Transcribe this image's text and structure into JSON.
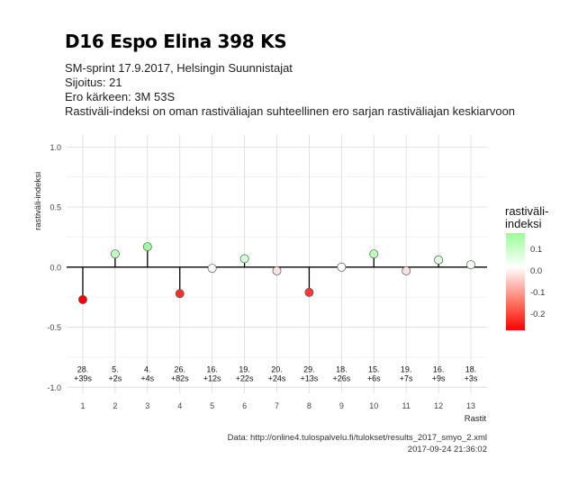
{
  "title": "D16 Espo Elina 398 KS",
  "subtitle_lines": [
    "SM-sprint 17.9.2017, Helsingin Suunnistajat",
    "Sijoitus: 21",
    "Ero kärkeen: 3M 53S",
    "Rastiväli-indeksi on oman rastiväliajan suhteellinen ero sarjan rastiväliajan keskiarvoon"
  ],
  "caption": {
    "source": "Data: http://online4.tulospalvelu.fi/tulokset/results_2017_smyo_2.xml",
    "timestamp": "2017-09-24 21:36:02"
  },
  "legend": {
    "title_line1": "rastiväli-",
    "title_line2": "indeksi",
    "ticks": [
      "0.1",
      "0.0",
      "-0.1",
      "-0.2"
    ],
    "tick_values": [
      0.1,
      0.0,
      -0.1,
      -0.2
    ],
    "range": [
      -0.27,
      0.18
    ],
    "colors": {
      "high": "#99ff99",
      "mid": "#ffffff",
      "low": "#ff0000"
    }
  },
  "chart_data": {
    "type": "scatter",
    "xlabel": "Rastit",
    "ylabel": "rastiväli-indeksi",
    "ylim": [
      -1.05,
      1.1
    ],
    "xlim": [
      0.5,
      13.5
    ],
    "y_ticks": [
      "1.0",
      "0.5",
      "0.0",
      "-0.5",
      "-1.0"
    ],
    "y_tick_values": [
      1.0,
      0.5,
      0.0,
      -0.5,
      -1.0
    ],
    "x": [
      1,
      2,
      3,
      4,
      5,
      6,
      7,
      8,
      9,
      10,
      11,
      12,
      13
    ],
    "values": [
      -0.27,
      0.11,
      0.17,
      -0.22,
      -0.01,
      0.07,
      -0.03,
      -0.21,
      0.0,
      0.11,
      -0.03,
      0.06,
      0.02
    ],
    "point_labels": [
      [
        "28.",
        "+39s"
      ],
      [
        "5.",
        "+2s"
      ],
      [
        "4.",
        "+4s"
      ],
      [
        "26.",
        "+82s"
      ],
      [
        "16.",
        "+12s"
      ],
      [
        "19.",
        "+22s"
      ],
      [
        "20.",
        "+24s"
      ],
      [
        "29.",
        "+13s"
      ],
      [
        "18.",
        "+26s"
      ],
      [
        "15.",
        "+6s"
      ],
      [
        "19.",
        "+7s"
      ],
      [
        "16.",
        "+9s"
      ],
      [
        "18.",
        "+3s"
      ]
    ],
    "label_y": -0.95,
    "grid": true,
    "legend_position": "right"
  }
}
